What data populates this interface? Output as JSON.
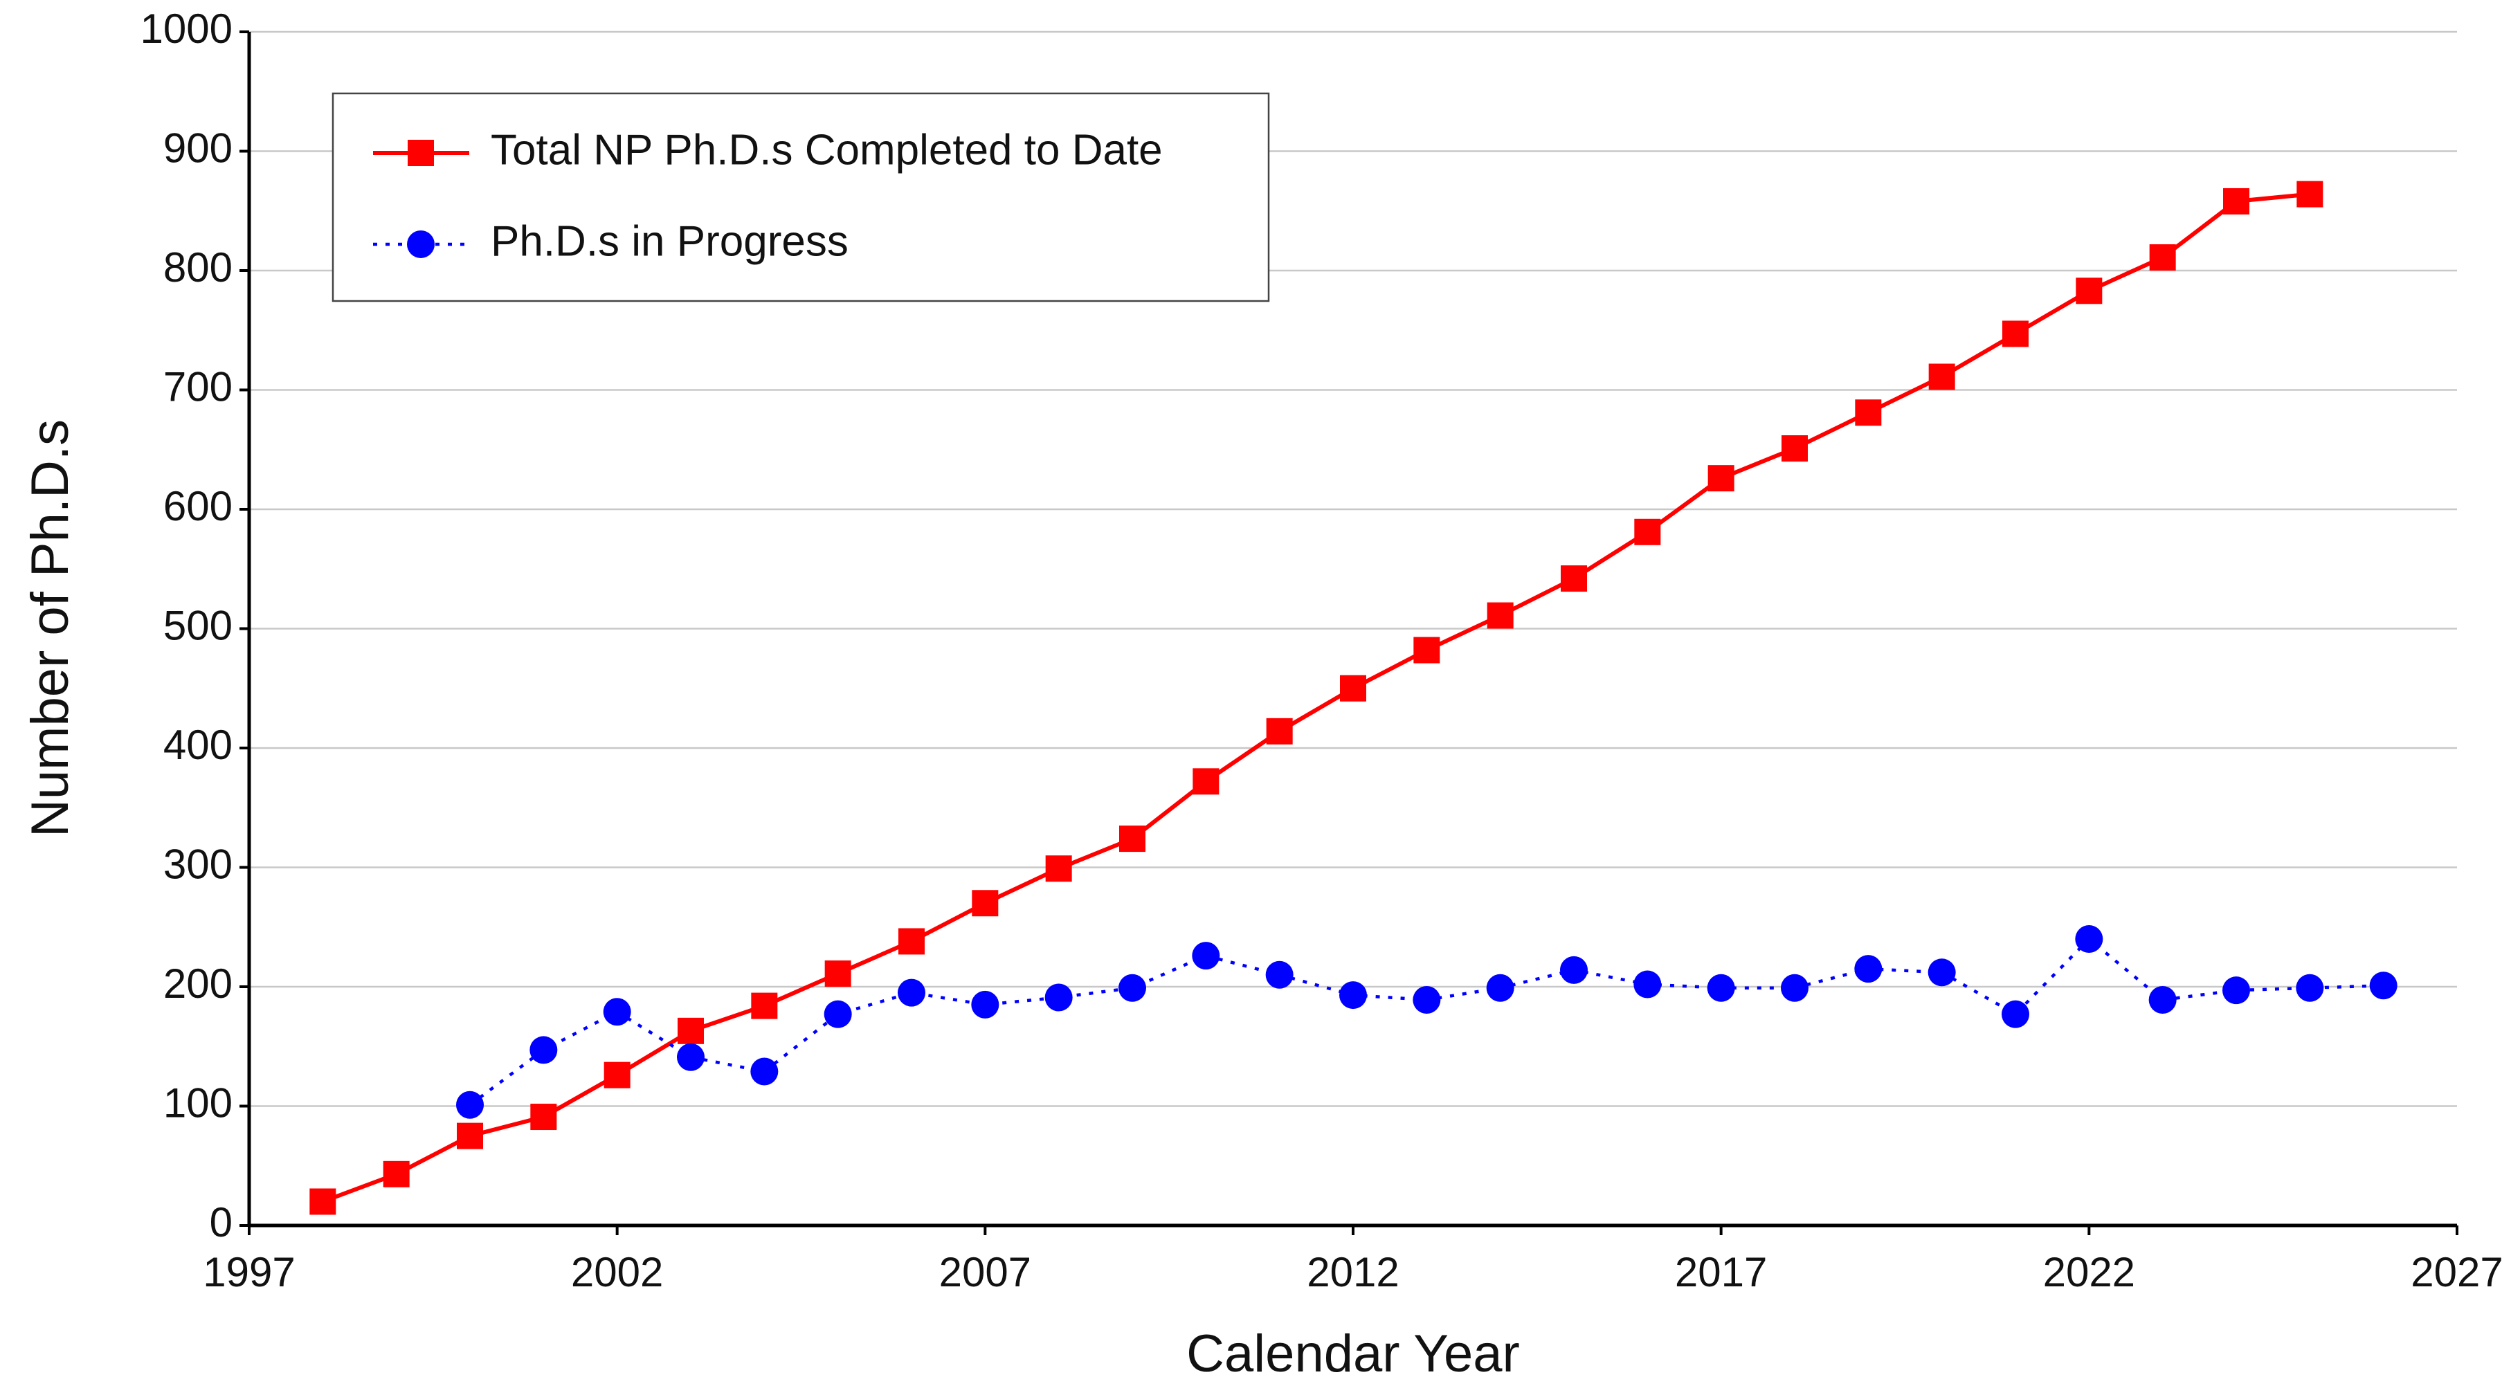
{
  "chart_data": {
    "type": "line",
    "xlabel": "Calendar Year",
    "ylabel": "Number of Ph.D.s",
    "x": [
      1998,
      1999,
      2000,
      2001,
      2002,
      2003,
      2004,
      2005,
      2006,
      2007,
      2008,
      2009,
      2010,
      2011,
      2012,
      2013,
      2014,
      2015,
      2016,
      2017,
      2018,
      2019,
      2020,
      2021,
      2022,
      2023,
      2024,
      2025,
      2026
    ],
    "series": [
      {
        "name": "Total NP Ph.D.s Completed to Date",
        "color": "#ff0000",
        "marker": "square",
        "linestyle": "solid",
        "values": [
          20,
          43,
          75,
          91,
          126,
          163,
          184,
          211,
          238,
          270,
          299,
          324,
          372,
          414,
          450,
          482,
          511,
          542,
          581,
          626,
          651,
          681,
          711,
          747,
          783,
          811,
          858,
          864,
          null
        ]
      },
      {
        "name": "Ph.D.s in Progress",
        "color": "#0000ff",
        "marker": "circle",
        "linestyle": "dotted",
        "values": [
          null,
          null,
          101,
          147,
          179,
          141,
          129,
          177,
          195,
          185,
          191,
          199,
          226,
          210,
          193,
          189,
          199,
          214,
          202,
          199,
          199,
          215,
          212,
          177,
          240,
          189,
          197,
          199,
          201
        ]
      }
    ],
    "xlim": [
      1997,
      2027
    ],
    "xticks": [
      1997,
      2002,
      2007,
      2012,
      2017,
      2022,
      2027
    ],
    "ylim": [
      0,
      1000
    ],
    "yticks": [
      0,
      100,
      200,
      300,
      400,
      500,
      600,
      700,
      800,
      900,
      1000
    ],
    "grid": true,
    "legend": "upper left"
  }
}
